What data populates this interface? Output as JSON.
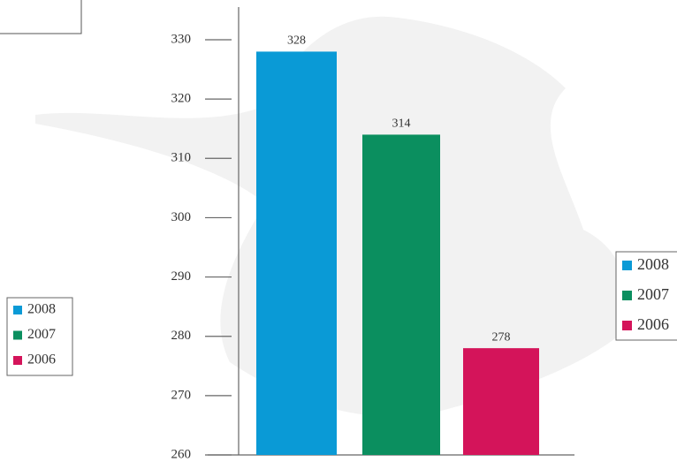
{
  "chart_data": {
    "type": "bar",
    "series": [
      {
        "name": "2008",
        "color": "#0a9ad6",
        "values": [
          328
        ]
      },
      {
        "name": "2007",
        "color": "#0b8f5f",
        "values": [
          314
        ]
      },
      {
        "name": "2006",
        "color": "#d4145a",
        "values": [
          278
        ]
      }
    ],
    "ylim": [
      260,
      330
    ],
    "yticks": [
      260,
      270,
      280,
      290,
      300,
      310,
      320,
      330
    ]
  }
}
